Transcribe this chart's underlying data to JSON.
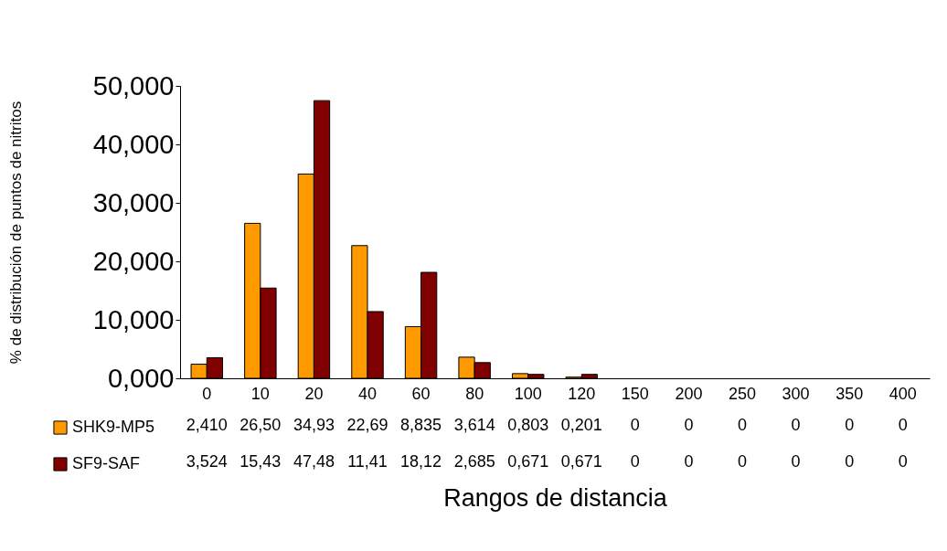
{
  "chart_data": {
    "type": "bar",
    "xlabel": "Rangos de distancia",
    "ylabel": "% de distribución de puntos de nitritos",
    "categories": [
      "0",
      "10",
      "20",
      "40",
      "60",
      "80",
      "100",
      "120",
      "150",
      "200",
      "250",
      "300",
      "350",
      "400"
    ],
    "series": [
      {
        "name": "SHK9-MP5",
        "color": "#ff9900",
        "values": [
          2.41,
          26.5,
          34.93,
          22.69,
          8.835,
          3.614,
          0.803,
          0.201,
          0,
          0,
          0,
          0,
          0,
          0
        ],
        "value_labels": [
          "2,410",
          "26,50",
          "34,93",
          "22,69",
          "8,835",
          "3,614",
          "0,803",
          "0,201",
          "0",
          "0",
          "0",
          "0",
          "0",
          "0"
        ]
      },
      {
        "name": "SF9-SAF",
        "color": "#800000",
        "values": [
          3.524,
          15.43,
          47.48,
          11.41,
          18.12,
          2.685,
          0.671,
          0.671,
          0,
          0,
          0,
          0,
          0,
          0
        ],
        "value_labels": [
          "3,524",
          "15,43",
          "47,48",
          "11,41",
          "18,12",
          "2,685",
          "0,671",
          "0,671",
          "0",
          "0",
          "0",
          "0",
          "0",
          "0"
        ]
      }
    ],
    "ylim": [
      0,
      50
    ],
    "yticks": [
      {
        "value": 0,
        "label": "0,000"
      },
      {
        "value": 10,
        "label": "10,000"
      },
      {
        "value": 20,
        "label": "20,000"
      },
      {
        "value": 30,
        "label": "30,000"
      },
      {
        "value": 40,
        "label": "40,000"
      },
      {
        "value": 50,
        "label": "50,000"
      }
    ],
    "legend": "bottom left",
    "grid": false
  }
}
